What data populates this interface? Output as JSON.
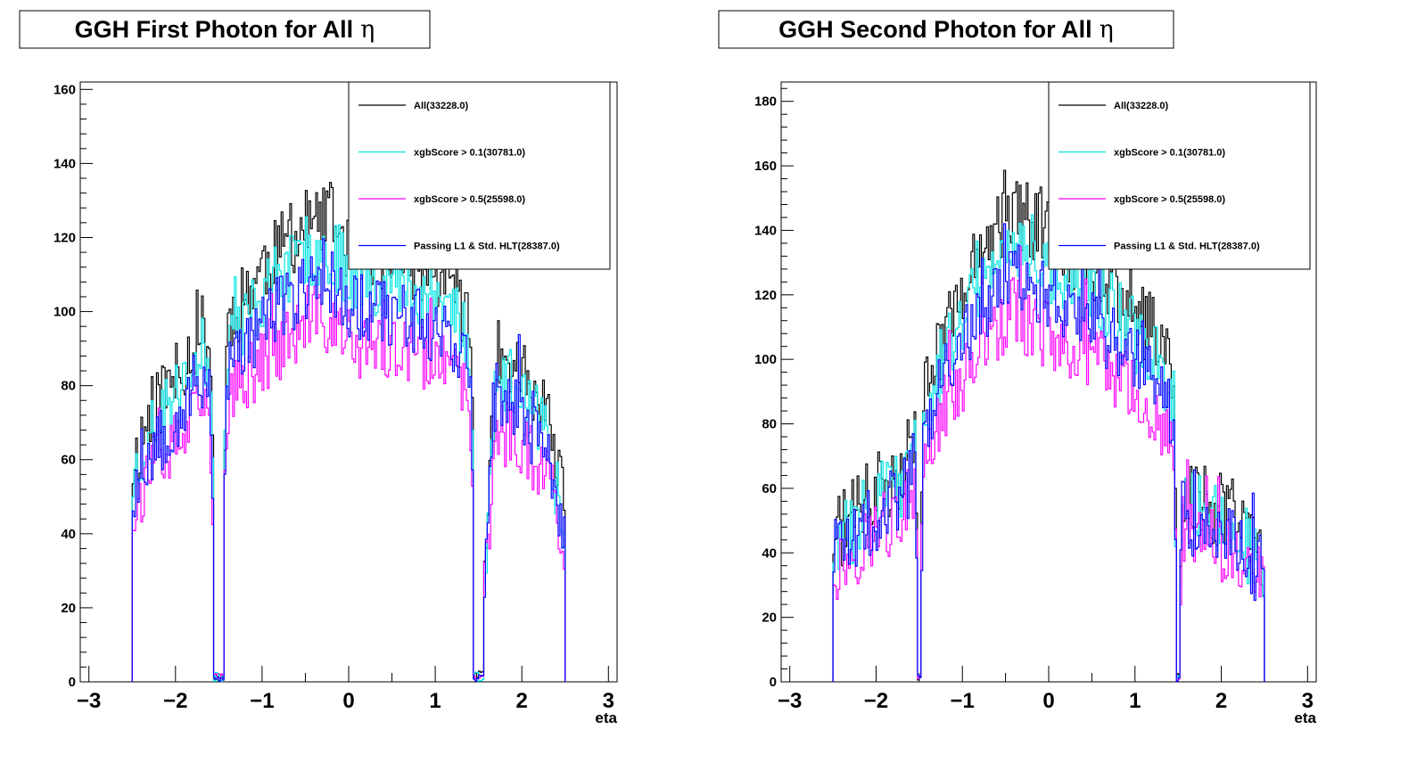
{
  "chart_data": [
    {
      "type": "line",
      "title": "GGH First Photon for All",
      "title_symbol": "η",
      "xlabel": "eta",
      "ylabel": "",
      "xlim": [
        -3.1,
        3.1
      ],
      "ylim": [
        0,
        162
      ],
      "yticks": [
        "0",
        "20",
        "40",
        "60",
        "80",
        "100",
        "120",
        "140",
        "160"
      ],
      "ytick_values": [
        0,
        20,
        40,
        60,
        80,
        100,
        120,
        140,
        160
      ],
      "xticks": [
        "−3",
        "−2",
        "−1",
        "0",
        "1",
        "2",
        "3"
      ],
      "xtick_values": [
        -3,
        -2,
        -1,
        0,
        1,
        2,
        3
      ],
      "grid": false,
      "legend_position": "top-right",
      "eta_range": [
        -2.5,
        2.5
      ],
      "crack": [
        -1.56,
        -1.44,
        1.44,
        1.56
      ],
      "crack_depth": [
        0.03,
        0.03
      ],
      "envelope": {
        "x": [
          -2.5,
          -2.3,
          -2.0,
          -1.7,
          -1.6,
          -1.5,
          -1.4,
          -1.0,
          -0.5,
          -0.2,
          0.0,
          0.3,
          0.8,
          1.2,
          1.4,
          1.5,
          1.7,
          2.0,
          2.3,
          2.5
        ],
        "y": [
          58,
          72,
          82,
          95,
          92,
          0,
          97,
          112,
          123,
          125,
          118,
          116,
          113,
          108,
          97,
          0,
          88,
          84,
          70,
          45
        ]
      },
      "series": [
        {
          "name": "All(33228.0)",
          "total": 33228.0,
          "color": "#000000",
          "scale": 1.0,
          "noise": 10,
          "seed": 11
        },
        {
          "name": "xgbScore > 0.1(30781.0)",
          "total": 30781.0,
          "color": "#00e5e5",
          "scale": 0.935,
          "noise": 10,
          "seed": 23
        },
        {
          "name": "xgbScore > 0.5(25598.0)",
          "total": 25598.0,
          "color": "#ff00ff",
          "scale": 0.775,
          "noise": 10,
          "seed": 37
        },
        {
          "name": "Passing L1 & Std. HLT(28387.0)",
          "total": 28387.0,
          "color": "#0000ff",
          "scale": 0.865,
          "noise": 10,
          "seed": 53
        }
      ]
    },
    {
      "type": "line",
      "title": "GGH Second Photon for All",
      "title_symbol": "η",
      "xlabel": "eta",
      "ylabel": "",
      "xlim": [
        -3.1,
        3.1
      ],
      "ylim": [
        0,
        186
      ],
      "yticks": [
        "0",
        "20",
        "40",
        "60",
        "80",
        "100",
        "120",
        "140",
        "160",
        "180"
      ],
      "ytick_values": [
        0,
        20,
        40,
        60,
        80,
        100,
        120,
        140,
        160,
        180
      ],
      "xticks": [
        "−3",
        "−2",
        "−1",
        "0",
        "1",
        "2",
        "3"
      ],
      "xtick_values": [
        -3,
        -2,
        -1,
        0,
        1,
        2,
        3
      ],
      "grid": false,
      "legend_position": "top-right",
      "eta_range": [
        -2.5,
        2.5
      ],
      "crack": [
        -1.52,
        -1.48,
        1.48,
        1.52
      ],
      "crack_depth": [
        0.0,
        0.0
      ],
      "envelope": {
        "x": [
          -2.5,
          -2.3,
          -2.0,
          -1.7,
          -1.55,
          -1.5,
          -1.45,
          -1.2,
          -0.8,
          -0.4,
          0.0,
          0.4,
          0.8,
          1.2,
          1.45,
          1.5,
          1.55,
          1.8,
          2.1,
          2.5
        ],
        "y": [
          45,
          50,
          60,
          66,
          78,
          0,
          88,
          110,
          132,
          148,
          138,
          132,
          122,
          108,
          95,
          0,
          60,
          56,
          52,
          38
        ]
      },
      "series": [
        {
          "name": "All(33228.0)",
          "total": 33228.0,
          "color": "#000000",
          "scale": 1.0,
          "noise": 12,
          "seed": 71
        },
        {
          "name": "xgbScore > 0.1(30781.0)",
          "total": 30781.0,
          "color": "#00e5e5",
          "scale": 0.935,
          "noise": 12,
          "seed": 83
        },
        {
          "name": "xgbScore > 0.5(25598.0)",
          "total": 25598.0,
          "color": "#ff00ff",
          "scale": 0.775,
          "noise": 12,
          "seed": 97
        },
        {
          "name": "Passing L1 & Std. HLT(28387.0)",
          "total": 28387.0,
          "color": "#0000ff",
          "scale": 0.865,
          "noise": 12,
          "seed": 101
        }
      ]
    }
  ]
}
